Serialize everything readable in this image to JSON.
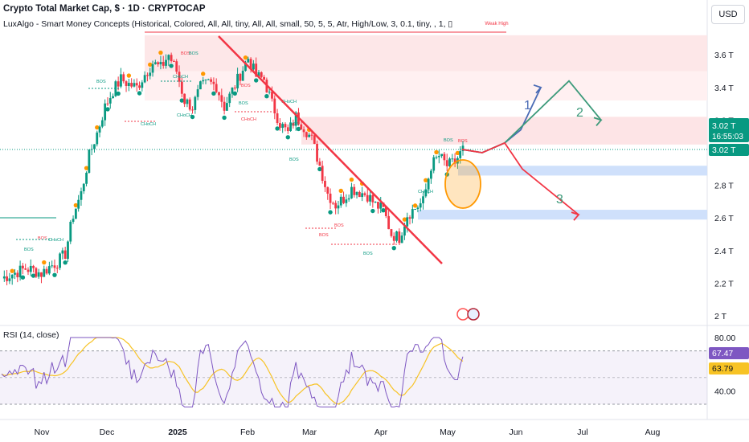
{
  "header": {
    "title": "Crypto Total Market Cap, $ · 1D · CRYPTOCAP",
    "indicator": "LuxAlgo - Smart Money Concepts (Historical, Colored, All, All, tiny, All, All, small, 50, 5, 5, Atr, High/Low, 3, 0.1, tiny, , 1, ▯▯▯, ▯▯▯, ▯▯▯)"
  },
  "currency_label": "USD",
  "colors": {
    "up": "#089981",
    "down": "#f23645",
    "trend_line": "#f23645",
    "rsi_line": "#7e57c2",
    "rsi_ma": "#f7c325",
    "supply_zone": "#fde4e6",
    "demand_zone": "#cfe0fb",
    "price_tag": "#089981"
  },
  "price_tag": {
    "value": "3.02 T",
    "countdown": "16:55:03",
    "last": "3.02 T"
  },
  "rsi": {
    "title": "RSI (14, close)",
    "value_label": "67.47",
    "ma_label": "63.79",
    "ticks": [
      "80.00",
      "40.00"
    ]
  },
  "chart_data": {
    "type": "candlestick",
    "y_axis": {
      "ticks": [
        2.0,
        2.2,
        2.4,
        2.6,
        2.8,
        3.0,
        3.2,
        3.4,
        3.6
      ],
      "tick_labels": [
        "2 T",
        "2.2 T",
        "2.4 T",
        "2.6 T",
        "2.8 T",
        "",
        "3.2 T",
        "3.4 T",
        "3.6 T"
      ],
      "scale": "linear"
    },
    "x_axis": {
      "labels": [
        "Nov",
        "Dec",
        "2025",
        "Feb",
        "Mar",
        "Apr",
        "May",
        "Jun",
        "Jul",
        "Aug"
      ]
    },
    "series": [
      {
        "name": "Crypto Total Market Cap",
        "close_path": [
          2.23,
          2.25,
          2.27,
          2.29,
          2.28,
          2.26,
          2.3,
          2.33,
          2.38,
          2.62,
          2.75,
          2.98,
          3.12,
          3.28,
          3.38,
          3.45,
          3.42,
          3.4,
          3.48,
          3.55,
          3.52,
          3.6,
          3.5,
          3.32,
          3.28,
          3.4,
          3.43,
          3.41,
          3.28,
          3.38,
          3.48,
          3.58,
          3.47,
          3.45,
          3.3,
          3.18,
          3.12,
          3.22,
          3.16,
          3.08,
          2.92,
          2.75,
          2.68,
          2.72,
          2.78,
          2.76,
          2.74,
          2.68,
          2.65,
          2.5,
          2.48,
          2.62,
          2.66,
          2.7,
          2.92,
          2.98,
          2.92,
          2.94,
          3.02
        ]
      }
    ],
    "annotations": {
      "structure_labels": [
        "BOS",
        "BOS",
        "BOS",
        "BOS",
        "BOS",
        "BOS",
        "BOS",
        "CHoCH",
        "CHoCH",
        "CHoCH",
        "CHoCH",
        "CHoCH",
        "BOS",
        "BOS",
        "BOS",
        "BOS",
        "BOS",
        "CHoCH",
        "BOS",
        "CHoCH",
        "BOS"
      ],
      "weak_high": "Weak High",
      "scenarios": [
        {
          "name": "1",
          "points": [
            [
              3.02,
              2.98
            ],
            [
              3.0,
              2.92
            ],
            [
              3.06,
              2.95
            ],
            [
              3.14,
              3.06
            ],
            [
              3.4,
              3.42
            ]
          ]
        },
        {
          "name": "2",
          "points": [
            [
              3.02,
              2.98
            ],
            [
              3.0,
              2.9
            ],
            [
              3.06,
              2.88
            ],
            [
              3.44,
              3.42
            ],
            [
              3.2,
              3.22
            ]
          ]
        },
        {
          "name": "3",
          "points": [
            [
              3.02,
              2.98
            ],
            [
              3.0,
              2.92
            ],
            [
              3.06,
              2.95
            ],
            [
              2.9,
              2.84
            ],
            [
              2.62,
              2.62
            ]
          ]
        }
      ],
      "zones": {
        "supply": [
          [
            3.5,
            3.72
          ],
          [
            3.32,
            3.5
          ],
          [
            3.05,
            3.22
          ]
        ],
        "demand": [
          [
            2.86,
            2.92
          ],
          [
            2.59,
            2.65
          ]
        ]
      }
    }
  }
}
